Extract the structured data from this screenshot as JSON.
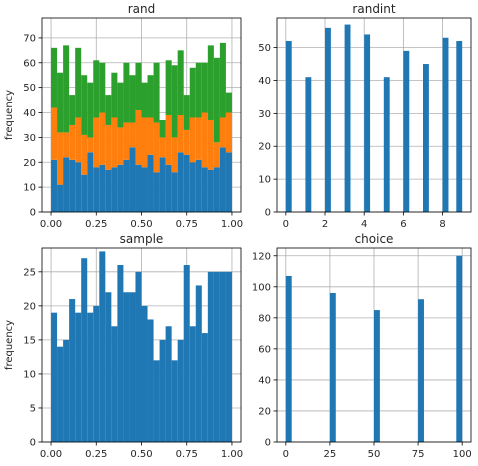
{
  "chart_data": [
    {
      "type": "bar",
      "title": "rand",
      "ylabel": "frequency",
      "xlim": [
        -0.05,
        1.05
      ],
      "ylim": [
        0,
        78
      ],
      "xticks": [
        "0.00",
        "0.25",
        "0.50",
        "0.75",
        "1.00"
      ],
      "yticks": [
        "0",
        "10",
        "20",
        "30",
        "40",
        "50",
        "60",
        "70"
      ],
      "grid": true,
      "bins": 30,
      "stacked": true,
      "series": [
        {
          "color": "#1f77b4",
          "values": [
            21,
            11,
            22,
            21,
            20,
            15,
            24,
            18,
            19,
            17,
            18,
            19,
            21,
            26,
            19,
            18,
            23,
            16,
            22,
            19,
            16,
            24,
            23,
            20,
            21,
            18,
            17,
            18,
            26,
            24
          ]
        },
        {
          "color": "#ff7f0e",
          "values": [
            21,
            21,
            10,
            14,
            18,
            16,
            6,
            20,
            21,
            18,
            20,
            15,
            15,
            10,
            22,
            20,
            15,
            20,
            8,
            20,
            14,
            15,
            10,
            18,
            17,
            22,
            20,
            10,
            12,
            16
          ]
        },
        {
          "color": "#2ca02c",
          "values": [
            24,
            24,
            35,
            12,
            28,
            24,
            22,
            23,
            20,
            12,
            18,
            18,
            24,
            19,
            19,
            14,
            17,
            24,
            7,
            22,
            29,
            26,
            14,
            20,
            22,
            20,
            30,
            34,
            30,
            8
          ]
        }
      ]
    },
    {
      "type": "bar",
      "title": "randint",
      "xlim": [
        -0.45,
        9.45
      ],
      "ylim": [
        0,
        59
      ],
      "xticks": [
        "0",
        "2",
        "4",
        "6",
        "8"
      ],
      "yticks": [
        "0",
        "10",
        "20",
        "30",
        "40",
        "50"
      ],
      "grid": true,
      "x": [
        0,
        1,
        2,
        3,
        4,
        5,
        6,
        7,
        8,
        9
      ],
      "values": [
        52,
        41,
        56,
        57,
        54,
        41,
        49,
        45,
        53,
        52
      ]
    },
    {
      "type": "bar",
      "title": "sample",
      "ylabel": "frequency",
      "xlim": [
        -0.05,
        1.05
      ],
      "ylim": [
        0,
        28.5
      ],
      "xticks": [
        "0.00",
        "0.25",
        "0.50",
        "0.75",
        "1.00"
      ],
      "yticks": [
        "0",
        "5",
        "10",
        "15",
        "20",
        "25"
      ],
      "grid": true,
      "bins": 30,
      "values": [
        19,
        14,
        15,
        21,
        19,
        27,
        19,
        20,
        28,
        22,
        17,
        26,
        22,
        22,
        25,
        20,
        18,
        12,
        15,
        17,
        12,
        15,
        26,
        17,
        23,
        16,
        25,
        25,
        25,
        25
      ]
    },
    {
      "type": "bar",
      "title": "choice",
      "xlim": [
        -5,
        105
      ],
      "ylim": [
        0,
        125
      ],
      "xticks": [
        "0",
        "25",
        "50",
        "75",
        "100"
      ],
      "yticks": [
        "0",
        "20",
        "40",
        "60",
        "80",
        "100",
        "120"
      ],
      "grid": true,
      "x": [
        0,
        25,
        50,
        75,
        100
      ],
      "values": [
        107,
        96,
        85,
        92,
        120
      ]
    }
  ]
}
